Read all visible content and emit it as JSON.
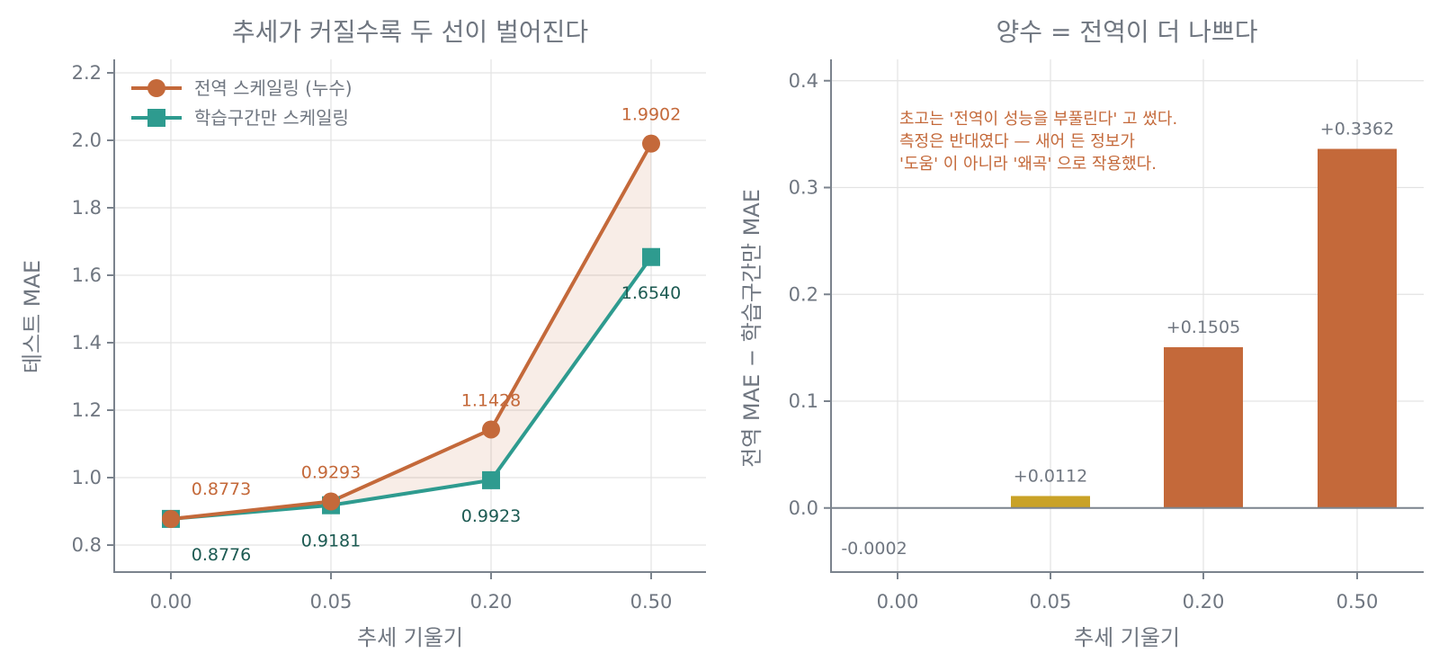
{
  "colors": {
    "leak": "#c4693a",
    "train": "#2e9b8f",
    "train_label": "#1c5a52",
    "small_bar": "#c9a227",
    "text": "#6f7680"
  },
  "chart_data": [
    {
      "type": "line",
      "title": "추세가 커질수록 두 선이 벌어진다",
      "xlabel": "추세 기울기",
      "ylabel": "테스트 MAE",
      "categories": [
        "0.00",
        "0.05",
        "0.20",
        "0.50"
      ],
      "ylim": [
        0.72,
        2.24
      ],
      "yticks": [
        "0.8",
        "1.0",
        "1.2",
        "1.4",
        "1.6",
        "1.8",
        "2.0",
        "2.2"
      ],
      "grid": true,
      "legend_position": "top-left",
      "series": [
        {
          "name": "전역 스케일링 (누수)",
          "marker": "circle",
          "values": [
            0.8773,
            0.9293,
            1.1428,
            1.9902
          ],
          "labels": [
            "0.8773",
            "0.9293",
            "1.1428",
            "1.9902"
          ]
        },
        {
          "name": "학습구간만 스케일링",
          "marker": "square",
          "values": [
            0.8776,
            0.9181,
            0.9923,
            1.654
          ],
          "labels": [
            "0.8776",
            "0.9181",
            "0.9923",
            "1.6540"
          ]
        }
      ]
    },
    {
      "type": "bar",
      "title": "양수 = 전역이 더 나쁘다",
      "xlabel": "추세 기울기",
      "ylabel": "전역 MAE − 학습구간만 MAE",
      "categories": [
        "0.00",
        "0.05",
        "0.20",
        "0.50"
      ],
      "values": [
        -0.0002,
        0.0112,
        0.1505,
        0.3362
      ],
      "labels": [
        "-0.0002",
        "+0.0112",
        "+0.1505",
        "+0.3362"
      ],
      "ylim": [
        -0.06,
        0.42
      ],
      "yticks": [
        "0.0",
        "0.1",
        "0.2",
        "0.3",
        "0.4"
      ],
      "grid": true,
      "annotation": [
        "초고는 '전역이 성능을 부풀린다' 고 썼다.",
        "측정은 반대였다 — 새어 든 정보가",
        "'도움' 이 아니라 '왜곡' 으로 작용했다."
      ]
    }
  ]
}
